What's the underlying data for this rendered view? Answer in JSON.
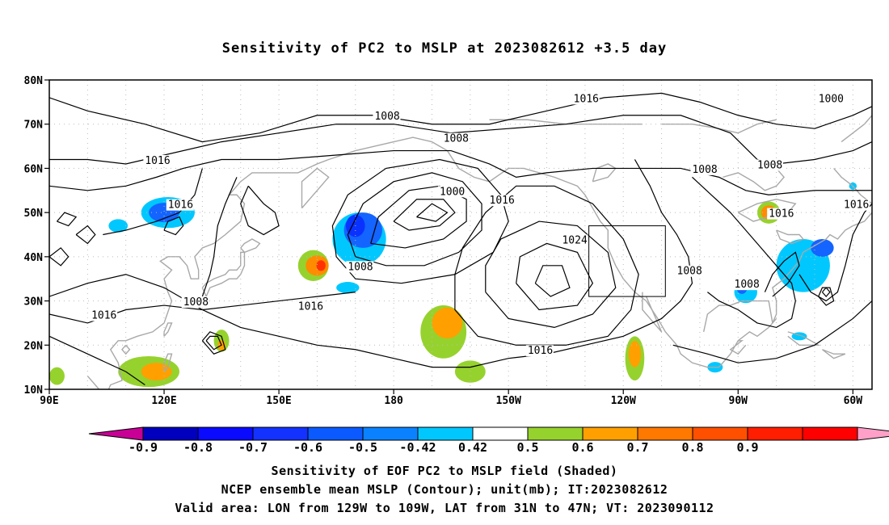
{
  "title": "Sensitivity of PC2 to MSLP at 2023082612 +3.5 day",
  "captions": [
    "Sensitivity of EOF PC2 to MSLP field (Shaded)",
    "NCEP ensemble mean MSLP (Contour); unit(mb); IT:2023082612",
    "Valid area: LON from 129W to 109W, LAT from 31N to 47N; VT: 2023090112"
  ],
  "map": {
    "lon_range": [
      90,
      305
    ],
    "lat_range": [
      10,
      80
    ],
    "x_ticks": [
      {
        "lon": 90,
        "label": "90E"
      },
      {
        "lon": 120,
        "label": "120E"
      },
      {
        "lon": 150,
        "label": "150E"
      },
      {
        "lon": 180,
        "label": "180"
      },
      {
        "lon": 210,
        "label": "150W"
      },
      {
        "lon": 240,
        "label": "120W"
      },
      {
        "lon": 270,
        "label": "90W"
      },
      {
        "lon": 300,
        "label": "60W"
      }
    ],
    "y_ticks": [
      {
        "lat": 10,
        "label": "10N"
      },
      {
        "lat": 20,
        "label": "20N"
      },
      {
        "lat": 30,
        "label": "30N"
      },
      {
        "lat": 40,
        "label": "40N"
      },
      {
        "lat": 50,
        "label": "50N"
      },
      {
        "lat": 60,
        "label": "60N"
      },
      {
        "lat": 70,
        "label": "70N"
      },
      {
        "lat": 80,
        "label": "80N"
      }
    ],
    "valid_box": {
      "lon": [
        231,
        251
      ],
      "lat": [
        31,
        47
      ]
    },
    "contour_labels": [
      {
        "text": "1016",
        "lon": 115,
        "lat": 61
      },
      {
        "text": "1016",
        "lon": 121,
        "lat": 51
      },
      {
        "text": "1008",
        "lon": 175,
        "lat": 71
      },
      {
        "text": "1008",
        "lon": 193,
        "lat": 66
      },
      {
        "text": "1016",
        "lon": 227,
        "lat": 75
      },
      {
        "text": "1000",
        "lon": 291,
        "lat": 75
      },
      {
        "text": "1000",
        "lon": 192,
        "lat": 54
      },
      {
        "text": "1016",
        "lon": 205,
        "lat": 52
      },
      {
        "text": "1008",
        "lon": 258,
        "lat": 59
      },
      {
        "text": "1008",
        "lon": 275,
        "lat": 60
      },
      {
        "text": "1016",
        "lon": 278,
        "lat": 49
      },
      {
        "text": "1016",
        "lon": 309,
        "lat": 51
      },
      {
        "text": "1024",
        "lon": 224,
        "lat": 43
      },
      {
        "text": "1008",
        "lon": 168,
        "lat": 37
      },
      {
        "text": "1008",
        "lon": 254,
        "lat": 36
      },
      {
        "text": "1008",
        "lon": 269,
        "lat": 33
      },
      {
        "text": "1016",
        "lon": 101,
        "lat": 26
      },
      {
        "text": "1008",
        "lon": 125,
        "lat": 29
      },
      {
        "text": "1016",
        "lon": 155,
        "lat": 28
      },
      {
        "text": "1016",
        "lon": 215,
        "lat": 18
      }
    ],
    "shaded_areas": [
      {
        "lon": 121,
        "lat": 50,
        "rx": 7,
        "ry": 3.5,
        "color": "#00c8ff"
      },
      {
        "lon": 120,
        "lat": 50,
        "rx": 4,
        "ry": 2.2,
        "color": "#1464ff"
      },
      {
        "lon": 171,
        "lat": 44,
        "rx": 7,
        "ry": 6,
        "color": "#00c8ff"
      },
      {
        "lon": 172,
        "lat": 46,
        "rx": 5,
        "ry": 4,
        "color": "#1464ff"
      },
      {
        "lon": 170,
        "lat": 47,
        "rx": 2.5,
        "ry": 2.5,
        "color": "#0a32ff"
      },
      {
        "lon": 159,
        "lat": 38,
        "rx": 4,
        "ry": 3.5,
        "color": "#96d22d"
      },
      {
        "lon": 160,
        "lat": 38,
        "rx": 3,
        "ry": 2.3,
        "color": "#ff8c00"
      },
      {
        "lon": 161,
        "lat": 38,
        "rx": 1.2,
        "ry": 1.2,
        "color": "#ff3200"
      },
      {
        "lon": 193,
        "lat": 23,
        "rx": 6,
        "ry": 6,
        "color": "#96d22d"
      },
      {
        "lon": 194,
        "lat": 25,
        "rx": 4,
        "ry": 3.5,
        "color": "#ffa000"
      },
      {
        "lon": 200,
        "lat": 14,
        "rx": 4,
        "ry": 2.5,
        "color": "#96d22d"
      },
      {
        "lon": 243,
        "lat": 17,
        "rx": 2.5,
        "ry": 5,
        "color": "#96d22d"
      },
      {
        "lon": 243,
        "lat": 18,
        "rx": 1.6,
        "ry": 3,
        "color": "#ffa000"
      },
      {
        "lon": 278,
        "lat": 50,
        "rx": 3,
        "ry": 2.5,
        "color": "#96d22d"
      },
      {
        "lon": 278,
        "lat": 50,
        "rx": 2,
        "ry": 1.6,
        "color": "#ff8c00"
      },
      {
        "lon": 287,
        "lat": 38,
        "rx": 7,
        "ry": 6,
        "color": "#00c8ff"
      },
      {
        "lon": 292,
        "lat": 42,
        "rx": 3,
        "ry": 2,
        "color": "#1464ff"
      },
      {
        "lon": 272,
        "lat": 32,
        "rx": 3,
        "ry": 2.5,
        "color": "#00c8ff"
      },
      {
        "lon": 271,
        "lat": 33,
        "rx": 1.4,
        "ry": 1.4,
        "color": "#1464ff"
      },
      {
        "lon": 135,
        "lat": 21,
        "rx": 2,
        "ry": 2.5,
        "color": "#96d22d"
      },
      {
        "lon": 135,
        "lat": 20,
        "rx": 1,
        "ry": 1.2,
        "color": "#ffa000"
      },
      {
        "lon": 116,
        "lat": 14,
        "rx": 8,
        "ry": 3.5,
        "color": "#96d22d"
      },
      {
        "lon": 118,
        "lat": 14,
        "rx": 4,
        "ry": 2,
        "color": "#ffa000"
      },
      {
        "lon": 92,
        "lat": 13,
        "rx": 2,
        "ry": 2,
        "color": "#96d22d"
      },
      {
        "lon": 286,
        "lat": 22,
        "rx": 2,
        "ry": 0.9,
        "color": "#00c8ff"
      },
      {
        "lon": 264,
        "lat": 15,
        "rx": 2,
        "ry": 1.2,
        "color": "#00c8ff"
      },
      {
        "lon": 168,
        "lat": 33,
        "rx": 3,
        "ry": 1.3,
        "color": "#00c8ff"
      },
      {
        "lon": 108,
        "lat": 47,
        "rx": 2.5,
        "ry": 1.5,
        "color": "#00c8ff"
      },
      {
        "lon": 300,
        "lat": 56,
        "rx": 1,
        "ry": 0.8,
        "color": "#00c8ff"
      },
      {
        "lon": 312,
        "lat": 46,
        "rx": 2,
        "ry": 1.5,
        "color": "#00c8ff"
      }
    ]
  },
  "colorbar": {
    "colors": [
      "#c80096",
      "#0000be",
      "#0a0aff",
      "#1432ff",
      "#0a5aff",
      "#0a82ff",
      "#00c8ff",
      "#ffffff",
      "#96d22d",
      "#ffa000",
      "#ff7800",
      "#ff5000",
      "#ff1e00",
      "#ff0000",
      "#ffa0c8"
    ],
    "labels": [
      "-0.9",
      "-0.8",
      "-0.7",
      "-0.6",
      "-0.5",
      "-0.42",
      "0.42",
      "0.5",
      "0.6",
      "0.7",
      "0.8",
      "0.9"
    ]
  }
}
